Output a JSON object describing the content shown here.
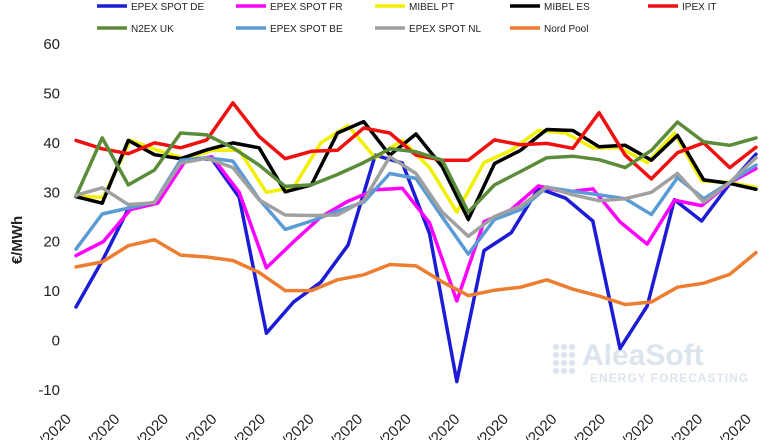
{
  "chart_data": {
    "type": "line",
    "ylabel": "€/MWh",
    "ylim": [
      -10,
      60
    ],
    "yticks": [
      -10,
      0,
      10,
      20,
      30,
      40,
      50,
      60
    ],
    "xtick_labels": [
      "/2020",
      "/2020",
      "/2020",
      "/2020",
      "/2020",
      "/2020",
      "/2020",
      "/2020",
      "/2020",
      "/2020",
      "/2020",
      "/2020",
      "/2020",
      "/2020",
      "/2020"
    ],
    "watermark": {
      "main": "AleaSoft",
      "sub": "ENERGY FORECASTING"
    },
    "series": [
      {
        "name": "EPEX SPOT DE",
        "color": "#1c1cd6",
        "values": [
          6.8,
          16.5,
          27.5,
          27.8,
          37,
          36.7,
          29,
          1.5,
          7.8,
          11.8,
          19.3,
          37.5,
          35.9,
          21.6,
          -8.3,
          18.2,
          21.8,
          30.8,
          28.8,
          24.2,
          -1.6,
          7,
          28.5,
          24.2,
          31.5,
          37.7
        ]
      },
      {
        "name": "EPEX SPOT FR",
        "color": "#ff00ff",
        "values": [
          17.2,
          20,
          26.5,
          27.8,
          36.2,
          37.2,
          30,
          14.7,
          20,
          25,
          28.2,
          30.5,
          30.8,
          23.8,
          8,
          24,
          26.5,
          31.3,
          30,
          30.7,
          24,
          19.5,
          28.4,
          27.3,
          31.8,
          34.8
        ]
      },
      {
        "name": "MIBEL PT",
        "color": "#f0f000",
        "values": [
          29.2,
          29,
          40.5,
          38.5,
          36.8,
          38.5,
          38.5,
          30,
          31,
          40,
          43.5,
          37,
          40.5,
          35,
          26,
          36,
          38.5,
          42.5,
          42,
          39,
          39,
          36,
          42,
          32.3,
          32,
          31
        ]
      },
      {
        "name": "MIBEL ES",
        "color": "#000000",
        "values": [
          29.1,
          27.8,
          40.5,
          37.6,
          36.8,
          38.6,
          40,
          39,
          30.1,
          31.5,
          42,
          44.3,
          37.5,
          41.8,
          35.2,
          24.5,
          35.8,
          38.5,
          42.7,
          42.5,
          39.2,
          39.5,
          36.5,
          41.5,
          32.5,
          31.8,
          30.6
        ]
      },
      {
        "name": "IPEX IT",
        "color": "#f01010",
        "values": [
          40.5,
          38.8,
          37.8,
          40,
          39,
          40.6,
          48.1,
          41.3,
          36.8,
          38.3,
          38.5,
          43,
          42,
          37.5,
          36.5,
          36.5,
          40.6,
          39.6,
          39.9,
          38.9,
          46.1,
          37.5,
          32.7,
          38,
          40,
          35,
          39.1
        ]
      },
      {
        "name": "N2EX UK",
        "color": "#5b8c3a",
        "values": [
          29.2,
          41,
          31.5,
          34.5,
          42,
          41.6,
          39,
          35.5,
          31.2,
          31.5,
          33.6,
          36,
          38.8,
          38.2,
          36.5,
          26,
          31.5,
          34.2,
          37,
          37.3,
          36.6,
          35,
          38.5,
          44.2,
          40.2,
          39.5,
          41
        ]
      },
      {
        "name": "EPEX SPOT BE",
        "color": "#5b9bd5",
        "values": [
          18.5,
          25.6,
          26.8,
          28,
          36.5,
          37,
          36.3,
          28.6,
          22.5,
          24.2,
          26.2,
          28,
          33.8,
          32.8,
          25,
          17.5,
          24.5,
          26.5,
          31,
          30.2,
          29.5,
          28.7,
          25.5,
          33,
          28.7,
          32,
          35.5
        ]
      },
      {
        "name": "EPEX SPOT NL",
        "color": "#a0a0a0",
        "values": [
          29.4,
          30.9,
          27.5,
          27.9,
          35.9,
          36.9,
          35,
          28.5,
          25.4,
          25.3,
          25.4,
          28.3,
          37.2,
          33.8,
          26,
          21.1,
          25.1,
          27.2,
          31.1,
          29.5,
          28.3,
          28.7,
          30,
          33.8,
          28,
          32,
          37
        ]
      },
      {
        "name": "Nord Pool",
        "color": "#ed7d31",
        "values": [
          14.9,
          15.9,
          19.2,
          20.4,
          17.3,
          16.9,
          16.2,
          13.8,
          10.1,
          10.1,
          12.3,
          13.3,
          15.4,
          15.1,
          11.9,
          9.1,
          10.2,
          10.8,
          12.3,
          10.4,
          9,
          7.3,
          7.8,
          10.8,
          11.6,
          13.4,
          17.8
        ]
      }
    ]
  }
}
